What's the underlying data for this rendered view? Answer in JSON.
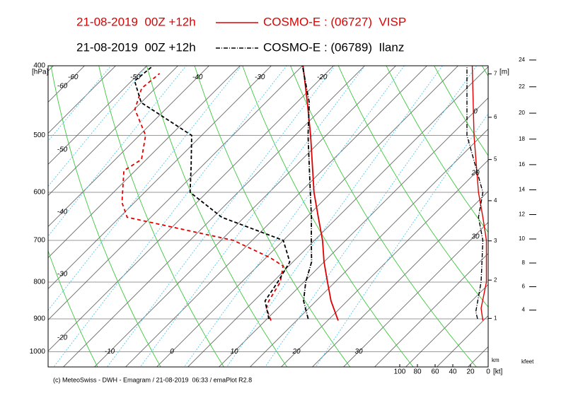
{
  "chart_data": {
    "type": "emagram",
    "stations": [
      {
        "run": "21-08-2019  00Z +12h",
        "name": "COSMO-E : (06727)  VISP",
        "color": "#e00000",
        "temperature": {
          "p": [
            905,
            850,
            800,
            750,
            700,
            650,
            600,
            500,
            450,
            400
          ],
          "values": [
            21.7,
            17.4,
            13.8,
            10,
            6.3,
            1.9,
            -2.8,
            -12.5,
            -18.3,
            -24.9
          ]
        },
        "dewpoint": {
          "p": [
            905,
            870,
            850,
            800,
            760,
            740,
            700,
            650,
            620,
            560,
            540,
            500,
            460,
            430,
            410
          ],
          "values": [
            10.9,
            8.2,
            7.4,
            6.2,
            4.1,
            0.7,
            -8,
            -28.8,
            -32,
            -36.8,
            -35.8,
            -39,
            -44.9,
            -47.2,
            -46.7
          ]
        },
        "wind_speed": {
          "p": [
            905,
            870,
            800,
            700,
            650,
            600,
            500,
            400
          ],
          "values": [
            6,
            8,
            2,
            2,
            6,
            11,
            16,
            18
          ]
        }
      },
      {
        "run": "21-08-2019  00Z +12h",
        "name": "COSMO-E : (06789)  Ilanz",
        "color": "#000000",
        "temperature": {
          "p": [
            900,
            850,
            800,
            750,
            700,
            650,
            600,
            500,
            450,
            400
          ],
          "values": [
            16.6,
            13,
            10.3,
            8,
            4.5,
            0.8,
            -3.4,
            -12.9,
            -18,
            -25
          ]
        },
        "dewpoint": {
          "p": [
            900,
            850,
            800,
            750,
            700,
            650,
            600,
            550,
            500,
            450,
            420,
            400
          ],
          "values": [
            10.3,
            6.8,
            5.8,
            4.5,
            0,
            -13.6,
            -22.7,
            -26.9,
            -31.6,
            -45,
            -49.5,
            -49
          ]
        },
        "wind_speed": {
          "p": [
            900,
            880,
            800,
            700,
            650,
            600,
            500,
            400
          ],
          "values": [
            12,
            14,
            8,
            6,
            11,
            6,
            24,
            24
          ]
        }
      }
    ],
    "y_label": "[hPa]",
    "log_y": true,
    "ylim": [
      400,
      1050
    ],
    "yticks": [
      400,
      500,
      600,
      700,
      800,
      900,
      1000
    ],
    "tticks_top": [
      -60,
      -50,
      -40,
      -30,
      -20
    ],
    "tticks_bottom": [
      -10,
      0,
      10,
      20,
      30
    ],
    "adiabat_labels_left": [
      -60,
      -50,
      -40,
      -30,
      -20
    ],
    "adiabat_labels_right": [
      0,
      20,
      30
    ],
    "wind_xlim": [
      100,
      0
    ],
    "wind_xticks": [
      100,
      80,
      60,
      40,
      20,
      0
    ],
    "wind_unit": "[kt]",
    "height_unit": "[m]",
    "km_label": "km",
    "km_ticks": [
      1,
      2,
      3,
      4,
      5,
      6,
      7
    ],
    "kfeet_label": "kfeet",
    "kfeet_ticks": [
      4,
      6,
      8,
      10,
      12,
      14,
      16,
      18,
      20,
      22,
      24
    ],
    "footer": "(c) MeteoSwiss - DWH - Emagram / 21-08-2019  06:33 / emaPlot R2.8"
  }
}
